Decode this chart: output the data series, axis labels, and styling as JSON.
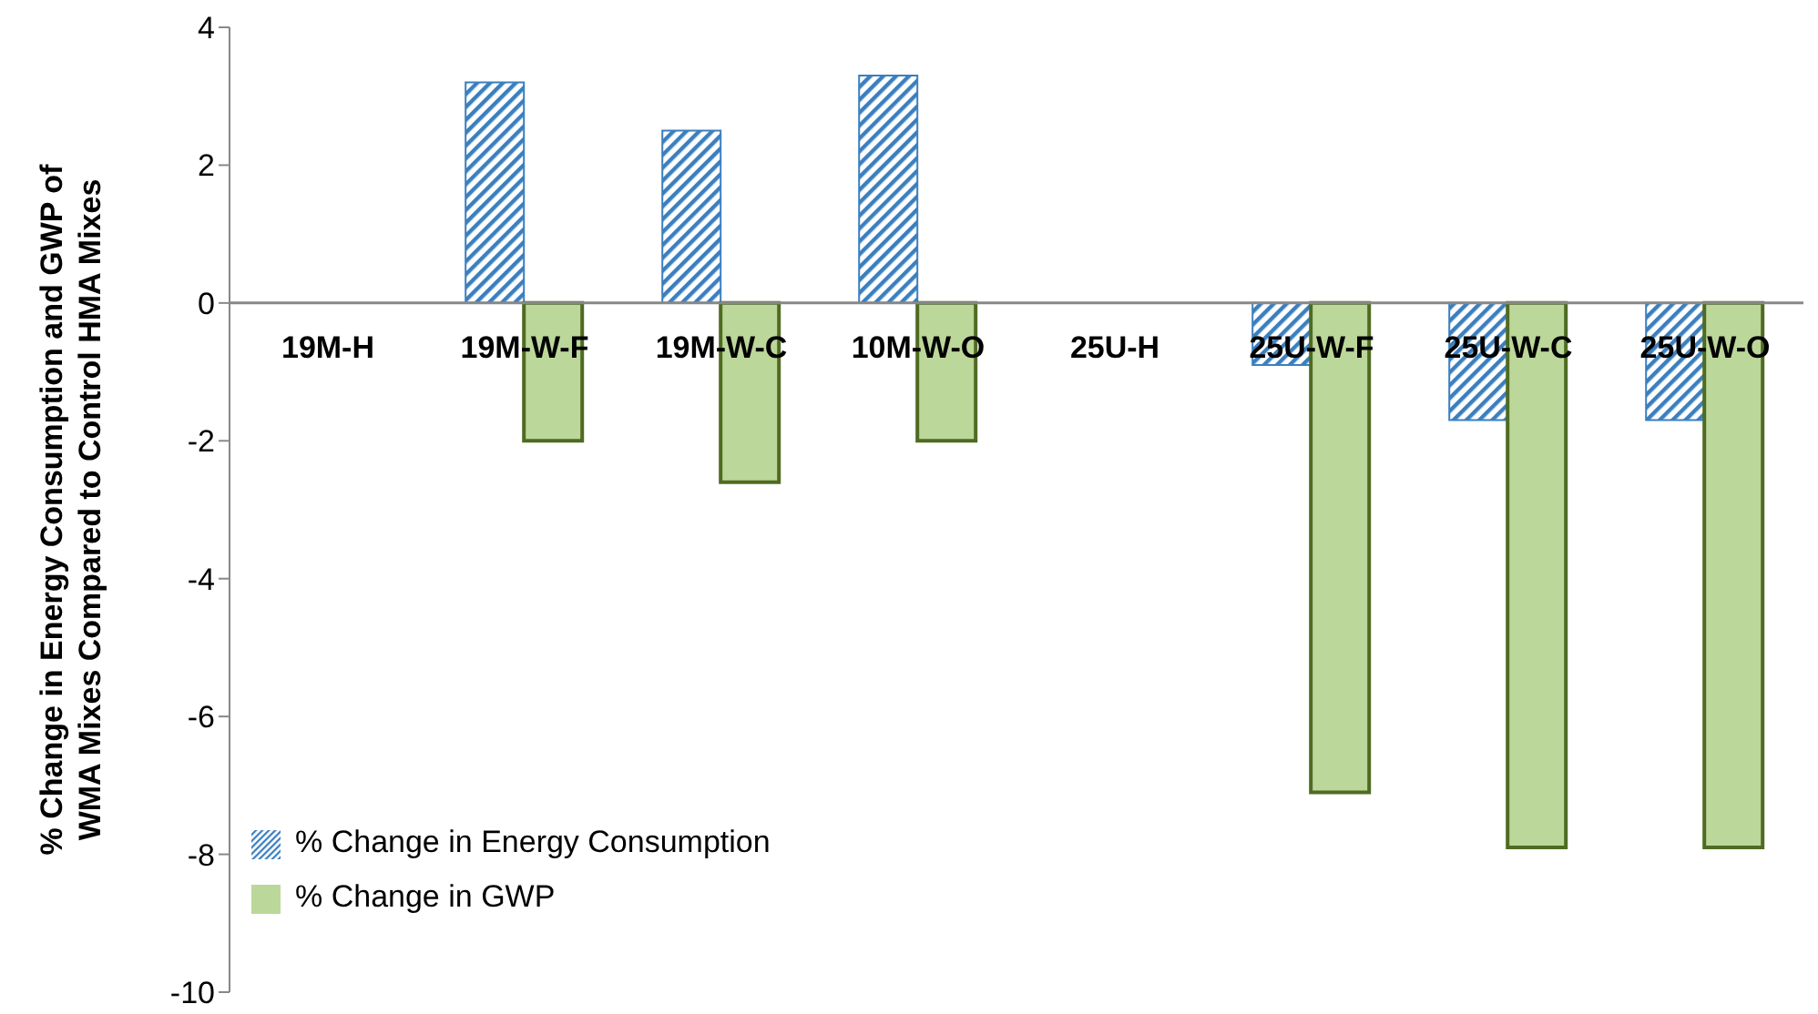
{
  "chart_data": {
    "type": "bar",
    "ylabel": "% Change in Energy Consumption and GWP of WMA Mixes Compared to Control HMA Mixes",
    "categories": [
      "19M-H",
      "19M-W-F",
      "19M-W-C",
      "10M-W-O",
      "25U-H",
      "25U-W-F",
      "25U-W-C",
      "25U-W-O"
    ],
    "series": [
      {
        "name": "% Change in Energy Consumption",
        "color": "#3b7fbf",
        "values": [
          null,
          3.2,
          2.5,
          3.3,
          null,
          -0.9,
          -1.7,
          -1.7
        ]
      },
      {
        "name": "% Change in GWP",
        "color": "#bcd79a",
        "values": [
          null,
          -2.0,
          -2.6,
          -2.0,
          null,
          -7.1,
          -7.9,
          -7.9
        ]
      }
    ],
    "ylim": [
      -10,
      4
    ],
    "yticks": [
      -10,
      -8,
      -6,
      -4,
      -2,
      0,
      2,
      4
    ],
    "grid": false,
    "legend": "bottom left"
  }
}
